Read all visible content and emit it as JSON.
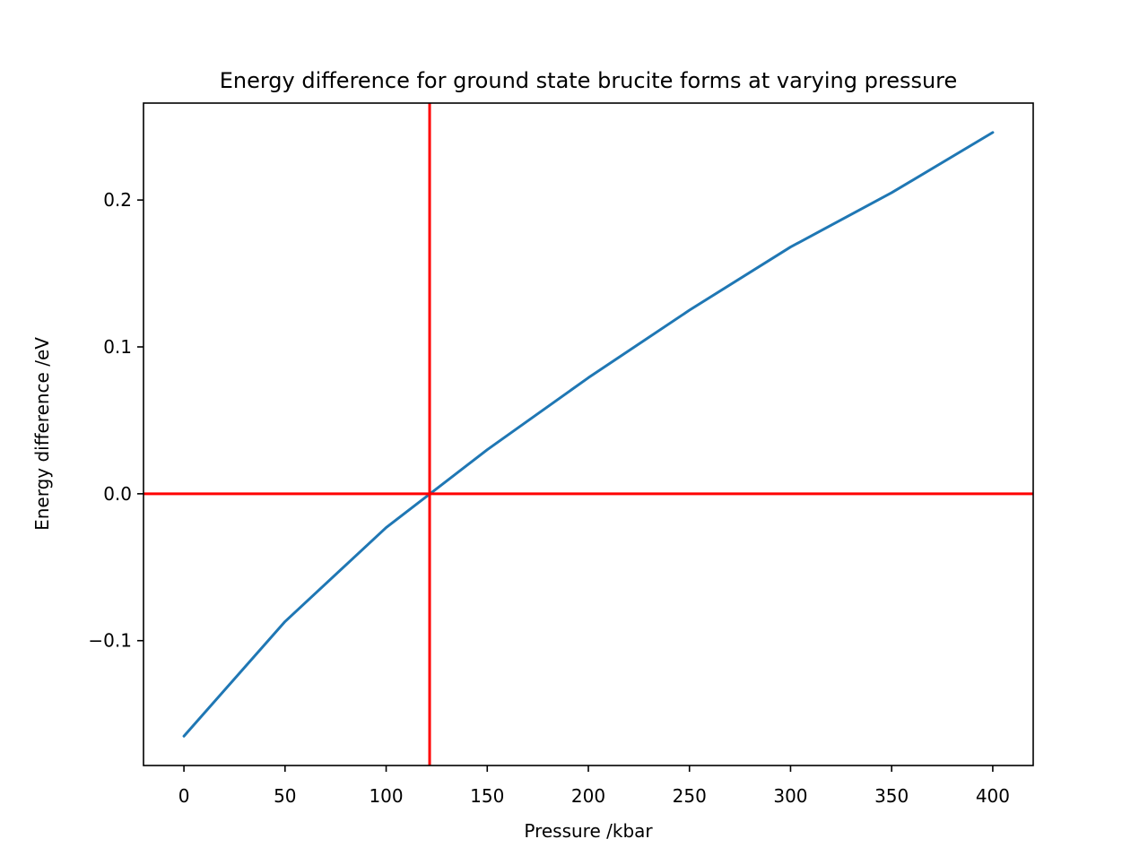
{
  "chart_data": {
    "type": "line",
    "title": "Energy difference for ground state brucite forms at varying pressure",
    "xlabel": "Pressure /kbar",
    "ylabel": "Energy difference /eV",
    "xlim": [
      -20,
      420
    ],
    "ylim": [
      -0.185,
      0.266
    ],
    "xticks": [
      0,
      50,
      100,
      150,
      200,
      250,
      300,
      350,
      400
    ],
    "xtick_labels": [
      "0",
      "50",
      "100",
      "150",
      "200",
      "250",
      "300",
      "350",
      "400"
    ],
    "yticks": [
      -0.1,
      0.0,
      0.1,
      0.2
    ],
    "ytick_labels": [
      "−0.1",
      "0.0",
      "0.1",
      "0.2"
    ],
    "grid": false,
    "series": [
      {
        "color": "#1f77b4",
        "x": [
          0,
          50,
          100,
          150,
          200,
          250,
          300,
          350,
          400
        ],
        "y": [
          -0.165,
          -0.087,
          -0.023,
          0.03,
          0.079,
          0.125,
          0.168,
          0.205,
          0.246
        ]
      }
    ],
    "reference_lines": [
      {
        "orientation": "horizontal",
        "value": 0.0,
        "color": "#ff0000"
      },
      {
        "orientation": "vertical",
        "value": 121.5,
        "color": "#ff0000"
      }
    ]
  }
}
